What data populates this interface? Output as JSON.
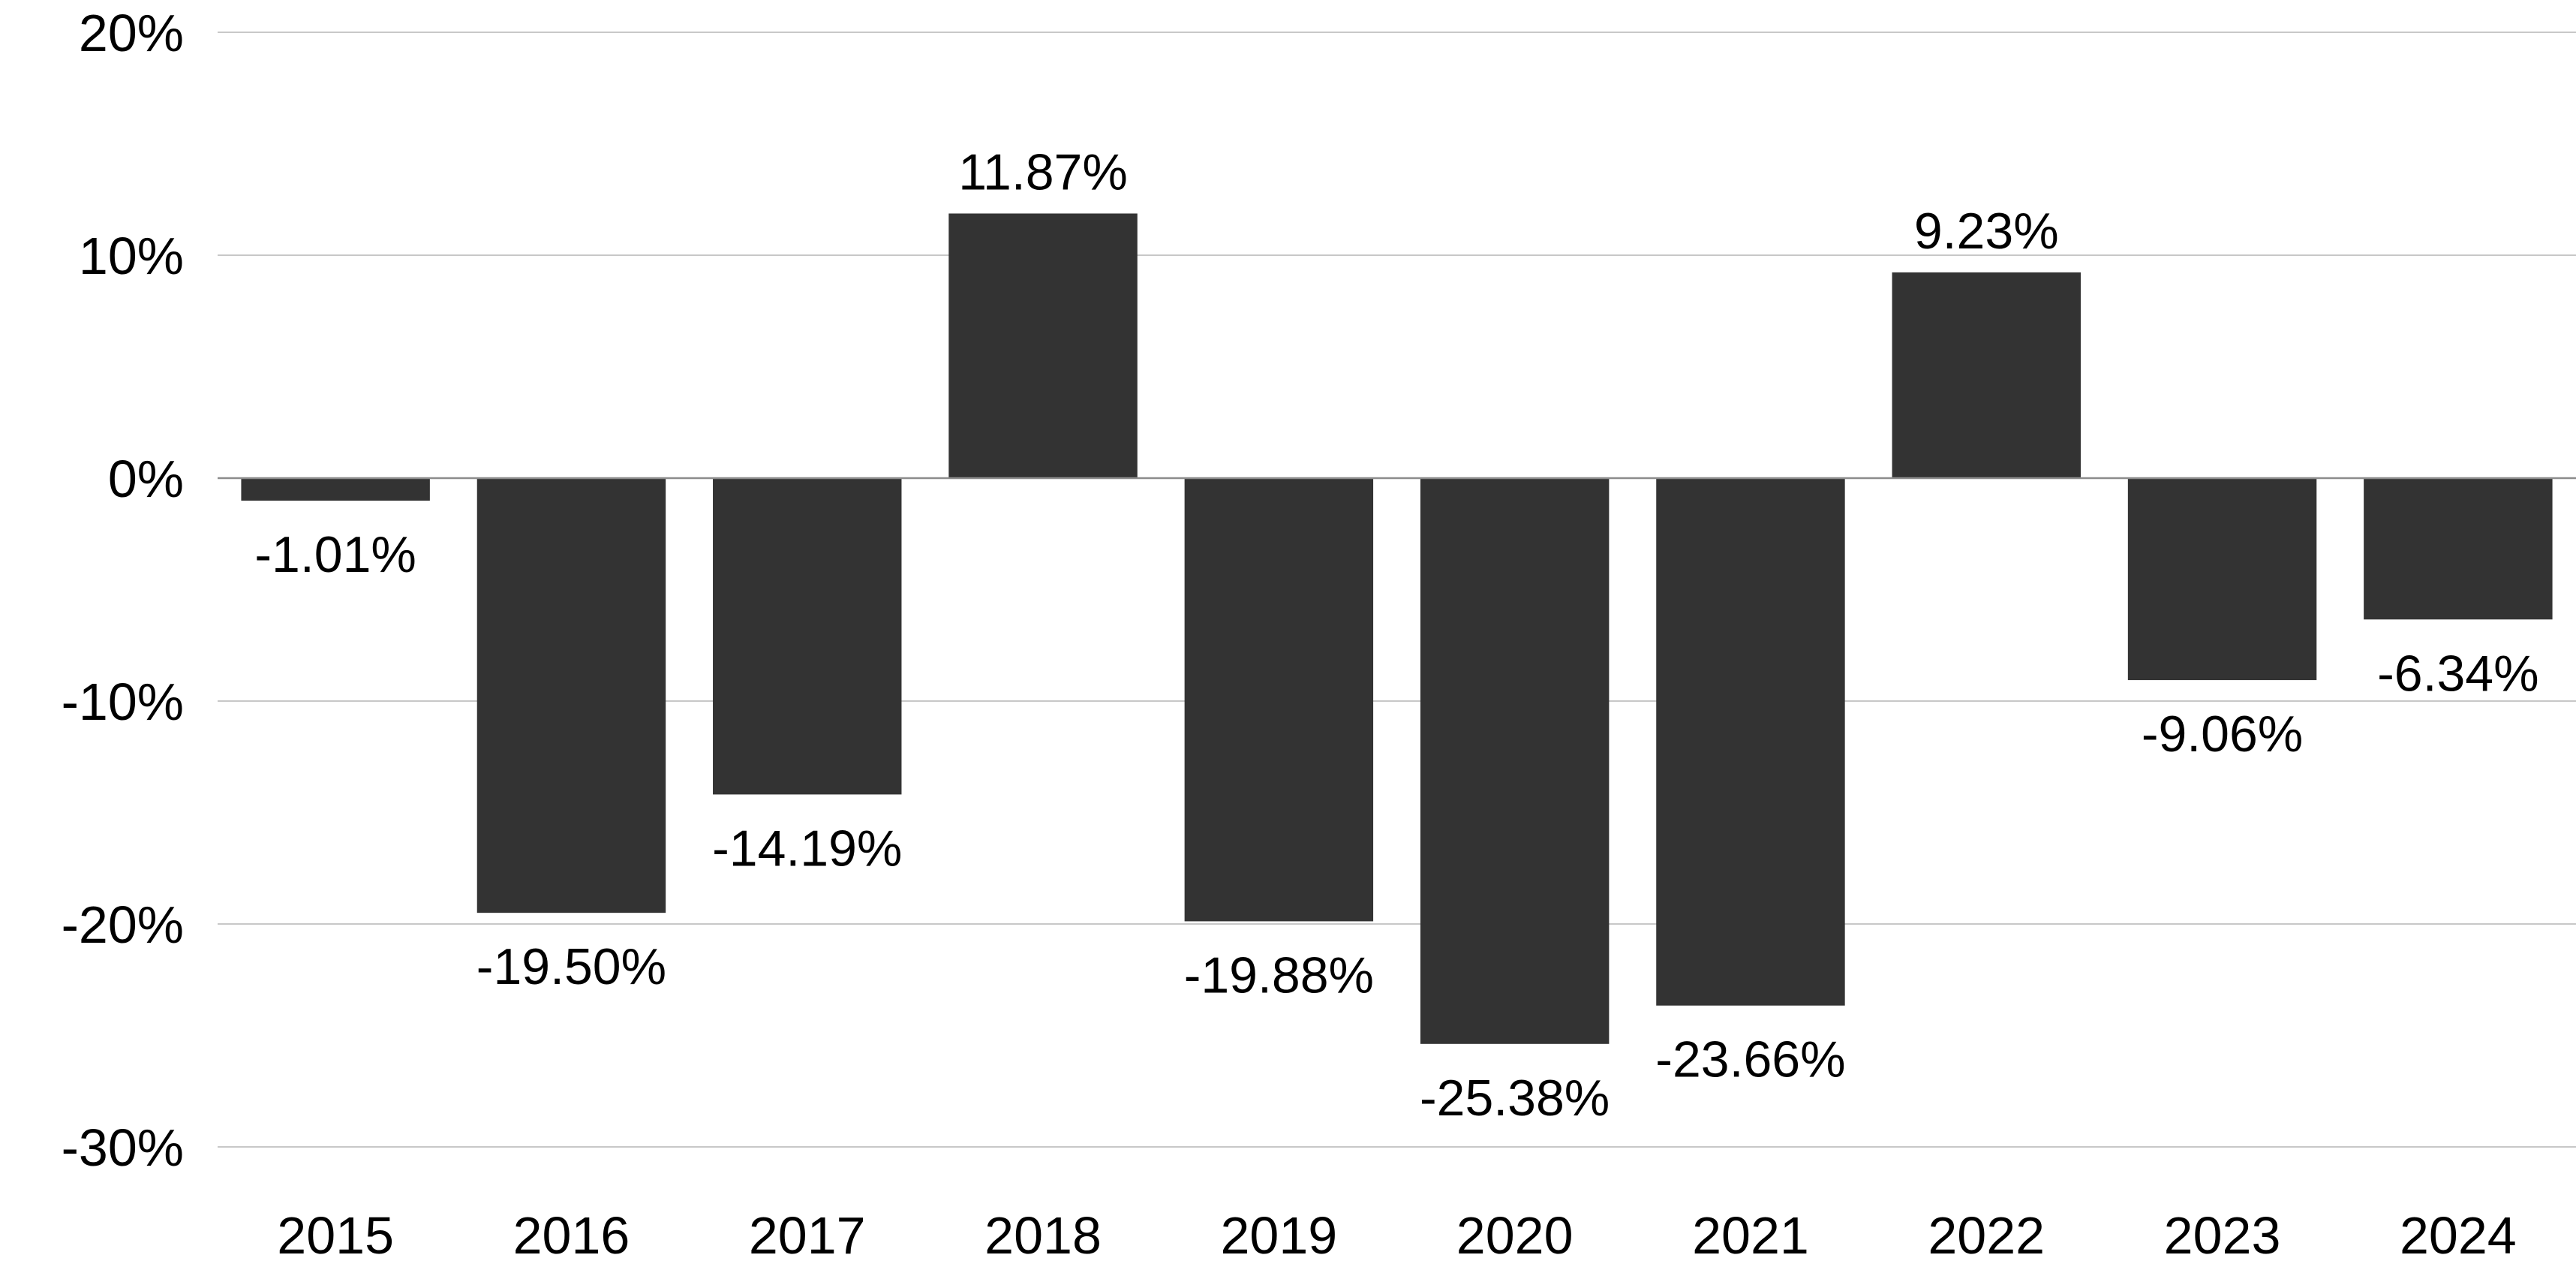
{
  "chart_data": {
    "type": "bar",
    "title": "",
    "xlabel": "",
    "ylabel": "",
    "categories": [
      "2015",
      "2016",
      "2017",
      "2018",
      "2019",
      "2020",
      "2021",
      "2022",
      "2023",
      "2024"
    ],
    "values": [
      -1.01,
      -19.5,
      -14.19,
      11.87,
      -19.88,
      -25.38,
      -23.66,
      9.23,
      -9.06,
      -6.34
    ],
    "data_labels": [
      "-1.01%",
      "-19.50%",
      "-14.19%",
      "11.87%",
      "-19.88%",
      "-25.38%",
      "-23.66%",
      "9.23%",
      "-9.06%",
      "-6.34%"
    ],
    "ylim": [
      -30,
      20
    ],
    "yticks": [
      20,
      10,
      0,
      -10,
      -20,
      -30
    ],
    "ytick_labels": [
      "20%",
      "10%",
      "0%",
      "-10%",
      "-20%",
      "-30%"
    ],
    "grid": true,
    "legend": "none",
    "bar_color": "#333333"
  }
}
